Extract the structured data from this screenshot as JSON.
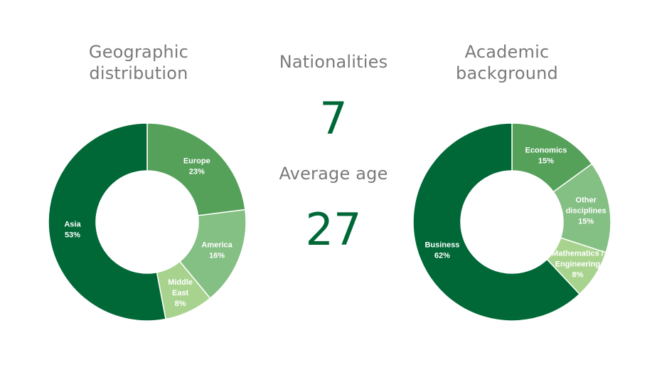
{
  "colors": {
    "heading": "#7a7a7a",
    "stat": "#006837",
    "slice_1": "#006837",
    "slice_2": "#55a15a",
    "slice_3": "#84bf84",
    "slice_4": "#a8d38e"
  },
  "stats": {
    "nationalities_label": "Nationalities",
    "nationalities_value": "7",
    "average_age_label": "Average age",
    "average_age_value": "27"
  },
  "chart_data": [
    {
      "type": "pie",
      "variant": "donut",
      "title_lines": [
        "Geographic",
        "distribution"
      ],
      "slices": [
        {
          "label_lines": [
            "Europe"
          ],
          "value": 23,
          "value_label": "23%"
        },
        {
          "label_lines": [
            "America"
          ],
          "value": 16,
          "value_label": "16%"
        },
        {
          "label_lines": [
            "Middle",
            "East"
          ],
          "value": 8,
          "value_label": "8%"
        },
        {
          "label_lines": [
            "Asia"
          ],
          "value": 53,
          "value_label": "53%"
        }
      ]
    },
    {
      "type": "pie",
      "variant": "donut",
      "title_lines": [
        "Academic",
        "background"
      ],
      "slices": [
        {
          "label_lines": [
            "Economics"
          ],
          "value": 15,
          "value_label": "15%"
        },
        {
          "label_lines": [
            "Other",
            "disciplines"
          ],
          "value": 15,
          "value_label": "15%"
        },
        {
          "label_lines": [
            "Mathematics /",
            "Engineering"
          ],
          "value": 8,
          "value_label": "8%"
        },
        {
          "label_lines": [
            "Business"
          ],
          "value": 62,
          "value_label": "62%"
        }
      ]
    }
  ]
}
